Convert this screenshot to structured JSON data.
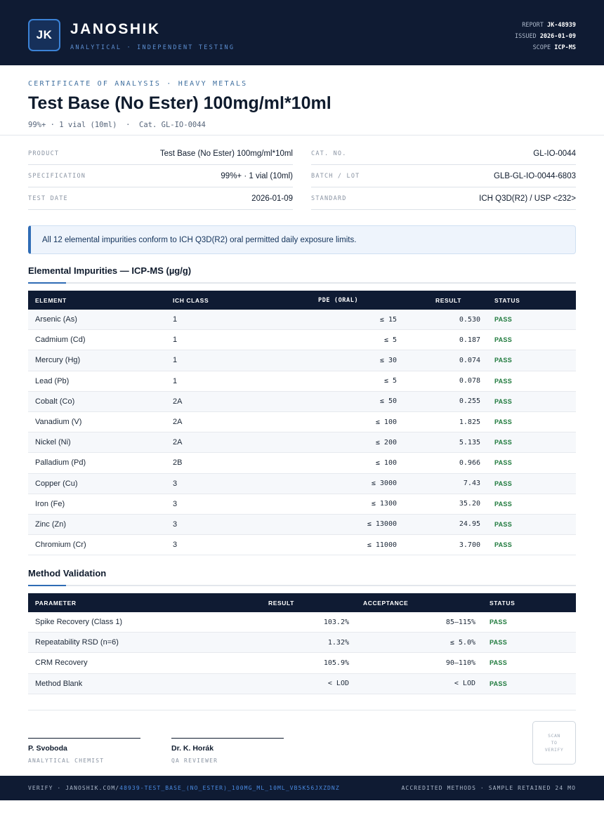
{
  "header": {
    "logo": "JK",
    "brand": "JANOSHIK",
    "tagline": "ANALYTICAL · INDEPENDENT TESTING",
    "report_label": "REPORT",
    "report_value": "JK-48939",
    "issued_label": "ISSUED",
    "issued_value": "2026-01-09",
    "scope_label": "SCOPE",
    "scope_value": "ICP-MS"
  },
  "doc": {
    "cert_label": "CERTIFICATE OF ANALYSIS · HEAVY METALS",
    "title": "Test Base (No Ester) 100mg/ml*10ml",
    "subtitle": "99%+ · 1 vial (10ml)  ·  Cat. GL-IO-0044"
  },
  "info": {
    "left": [
      {
        "key": "PRODUCT",
        "value": "Test Base (No Ester) 100mg/ml*10ml"
      },
      {
        "key": "SPECIFICATION",
        "value": "99%+ · 1 vial (10ml)"
      },
      {
        "key": "TEST DATE",
        "value": "2026-01-09"
      }
    ],
    "right": [
      {
        "key": "CAT. NO.",
        "value": "GL-IO-0044"
      },
      {
        "key": "BATCH / LOT",
        "value": "GLB-GL-IO-0044-6803"
      },
      {
        "key": "STANDARD",
        "value": "ICH Q3D(R2) / USP <232>"
      }
    ]
  },
  "callout": "All 12 elemental impurities conform to ICH Q3D(R2) oral permitted daily exposure limits.",
  "impurities": {
    "title": "Elemental Impurities — ICP-MS (µg/g)",
    "headers": {
      "element": "ELEMENT",
      "class": "ICH CLASS",
      "pde": "PDE (ORAL)",
      "result": "RESULT",
      "status": "STATUS"
    },
    "rows": [
      {
        "element": "Arsenic (As)",
        "class": "1",
        "pde": "≤ 15",
        "result": "0.530",
        "status": "PASS"
      },
      {
        "element": "Cadmium (Cd)",
        "class": "1",
        "pde": "≤ 5",
        "result": "0.187",
        "status": "PASS"
      },
      {
        "element": "Mercury (Hg)",
        "class": "1",
        "pde": "≤ 30",
        "result": "0.074",
        "status": "PASS"
      },
      {
        "element": "Lead (Pb)",
        "class": "1",
        "pde": "≤ 5",
        "result": "0.078",
        "status": "PASS"
      },
      {
        "element": "Cobalt (Co)",
        "class": "2A",
        "pde": "≤ 50",
        "result": "0.255",
        "status": "PASS"
      },
      {
        "element": "Vanadium (V)",
        "class": "2A",
        "pde": "≤ 100",
        "result": "1.825",
        "status": "PASS"
      },
      {
        "element": "Nickel (Ni)",
        "class": "2A",
        "pde": "≤ 200",
        "result": "5.135",
        "status": "PASS"
      },
      {
        "element": "Palladium (Pd)",
        "class": "2B",
        "pde": "≤ 100",
        "result": "0.966",
        "status": "PASS"
      },
      {
        "element": "Copper (Cu)",
        "class": "3",
        "pde": "≤ 3000",
        "result": "7.43",
        "status": "PASS"
      },
      {
        "element": "Iron (Fe)",
        "class": "3",
        "pde": "≤ 1300",
        "result": "35.20",
        "status": "PASS"
      },
      {
        "element": "Zinc (Zn)",
        "class": "3",
        "pde": "≤ 13000",
        "result": "24.95",
        "status": "PASS"
      },
      {
        "element": "Chromium (Cr)",
        "class": "3",
        "pde": "≤ 11000",
        "result": "3.700",
        "status": "PASS"
      }
    ]
  },
  "validation": {
    "title": "Method Validation",
    "headers": {
      "parameter": "PARAMETER",
      "result": "RESULT",
      "acceptance": "ACCEPTANCE",
      "status": "STATUS"
    },
    "rows": [
      {
        "parameter": "Spike Recovery (Class 1)",
        "result": "103.2%",
        "acceptance": "85–115%",
        "status": "PASS"
      },
      {
        "parameter": "Repeatability RSD (n=6)",
        "result": "1.32%",
        "acceptance": "≤ 5.0%",
        "status": "PASS"
      },
      {
        "parameter": "CRM Recovery",
        "result": "105.9%",
        "acceptance": "90–110%",
        "status": "PASS"
      },
      {
        "parameter": "Method Blank",
        "result": "< LOD",
        "acceptance": "< LOD",
        "status": "PASS"
      }
    ]
  },
  "signatures": [
    {
      "name": "P. Svoboda",
      "role": "ANALYTICAL CHEMIST"
    },
    {
      "name": "Dr. K. Horák",
      "role": "QA REVIEWER"
    }
  ],
  "qr": {
    "line1": "SCAN",
    "line2": "TO",
    "line3": "VERIFY"
  },
  "footer": {
    "verify_prefix": "VERIFY · JANOSHIK.COM/",
    "verify_path": "48939-TEST_BASE_(NO_ESTER)_100MG_ML_10ML_VB5K56JXZDNZ",
    "right": "ACCREDITED METHODS · SAMPLE RETAINED 24 MO"
  },
  "colors": {
    "navy": "#0f1b33",
    "accent": "#2f6cb5",
    "pass": "#1f7a3d"
  }
}
